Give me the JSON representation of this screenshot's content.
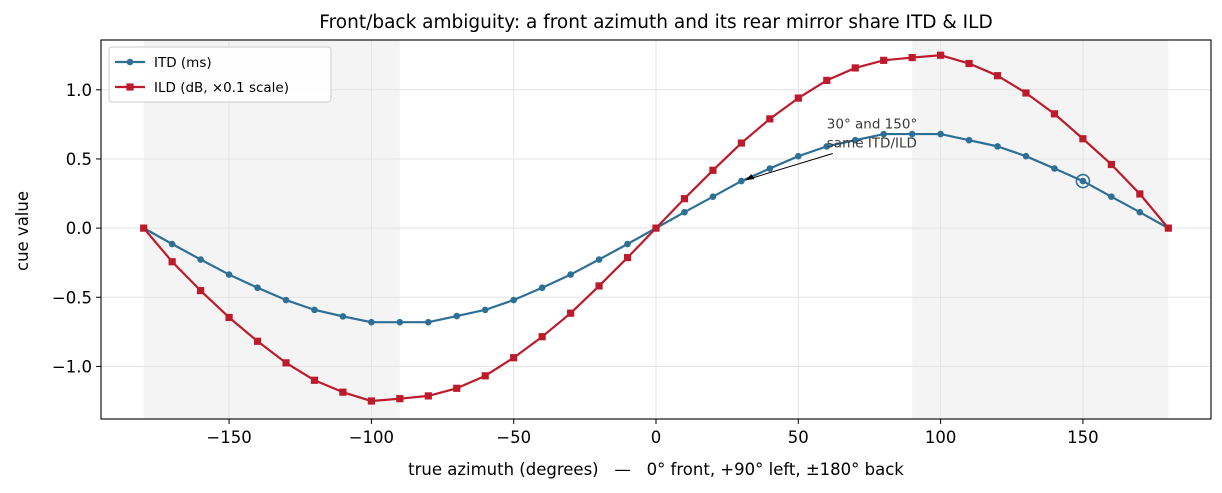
{
  "chart_data": {
    "type": "line",
    "title": "Front/back ambiguity: a front azimuth and its rear mirror share ITD & ILD",
    "xlabel": "true azimuth (degrees)   —   0° front, +90° left, ±180° back",
    "ylabel": "cue value",
    "xlim": [
      -195,
      195
    ],
    "ylim": [
      -1.38,
      1.36
    ],
    "xticks": [
      -150,
      -100,
      -50,
      0,
      50,
      100,
      150
    ],
    "yticks": [
      -1.0,
      -0.5,
      0.0,
      0.5,
      1.0
    ],
    "xtick_labels": [
      "−150",
      "−100",
      "−50",
      "0",
      "50",
      "100",
      "150"
    ],
    "ytick_labels": [
      "−1.0",
      "−0.5",
      "0.0",
      "0.5",
      "1.0"
    ],
    "grid": true,
    "legend_position": "upper-left",
    "shaded_regions": [
      [
        -180,
        -90
      ],
      [
        90,
        180
      ]
    ],
    "shade_color": "#f4f4f4",
    "x": [
      -180,
      -170,
      -160,
      -150,
      -140,
      -130,
      -120,
      -110,
      -100,
      -90,
      -80,
      -70,
      -60,
      -50,
      -40,
      -30,
      -20,
      -10,
      0,
      10,
      20,
      30,
      40,
      50,
      60,
      70,
      80,
      90,
      100,
      110,
      120,
      130,
      140,
      150,
      160,
      170,
      180
    ],
    "series": [
      {
        "name": "ITD (ms)",
        "color": "#2e6f96",
        "marker": "circle",
        "values": [
          0.0,
          -0.115,
          -0.227,
          -0.336,
          -0.431,
          -0.52,
          -0.591,
          -0.638,
          -0.68,
          -0.68,
          -0.68,
          -0.636,
          -0.591,
          -0.52,
          -0.431,
          -0.336,
          -0.227,
          -0.115,
          0.0,
          0.115,
          0.227,
          0.34,
          0.431,
          0.52,
          0.591,
          0.636,
          0.68,
          0.68,
          0.68,
          0.636,
          0.591,
          0.52,
          0.431,
          0.34,
          0.227,
          0.115,
          0.0
        ]
      },
      {
        "name": "ILD (dB, ×0.1 scale)",
        "color": "#bd1b2b",
        "marker": "square",
        "values": [
          0.0,
          -0.243,
          -0.452,
          -0.646,
          -0.818,
          -0.974,
          -1.1,
          -1.186,
          -1.25,
          -1.233,
          -1.213,
          -1.158,
          -1.068,
          -0.937,
          -0.785,
          -0.615,
          -0.418,
          -0.213,
          0.0,
          0.213,
          0.418,
          0.615,
          0.79,
          0.94,
          1.068,
          1.158,
          1.213,
          1.233,
          1.25,
          1.19,
          1.102,
          0.977,
          0.826,
          0.646,
          0.46,
          0.247,
          0.0
        ]
      }
    ],
    "annotation": {
      "text_lines": [
        "30° and 150°",
        "same ITD/ILD"
      ],
      "text_xy": [
        60,
        0.72
      ],
      "arrow_to": [
        30,
        0.34
      ],
      "highlight_point": [
        150,
        0.34
      ],
      "highlight_color": "#2e6f96"
    }
  }
}
